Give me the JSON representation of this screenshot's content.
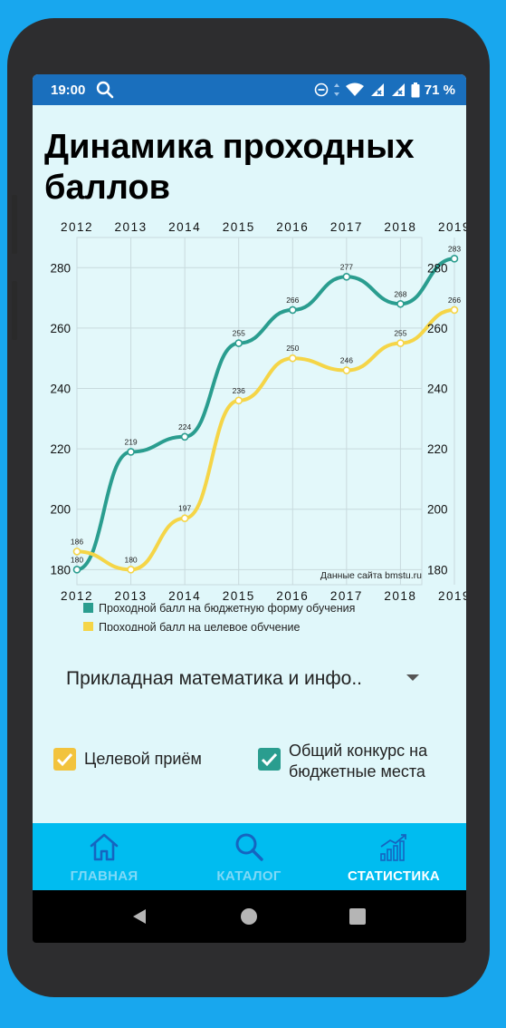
{
  "status_bar": {
    "time": "19:00",
    "battery": "71 %"
  },
  "page": {
    "title": "Динамика проходных баллов"
  },
  "chart_data": {
    "type": "line",
    "categories": [
      "2012",
      "2013",
      "2014",
      "2015",
      "2016",
      "2017",
      "2018",
      "2019"
    ],
    "ylim": [
      175,
      290
    ],
    "yticks": [
      180,
      200,
      220,
      240,
      260,
      280
    ],
    "grid": true,
    "series": [
      {
        "name": "Проходной балл на бюджетную форму обучения",
        "color": "#2a9d8f",
        "values": [
          180,
          219,
          224,
          255,
          266,
          277,
          268,
          283
        ]
      },
      {
        "name": "Проходной балл на целевое обучение",
        "color": "#f5d547",
        "values": [
          186,
          180,
          197,
          236,
          250,
          246,
          255,
          266
        ]
      }
    ],
    "source_note": "Данные сайта bmstu.ru",
    "legend_position": "bottom-left"
  },
  "program_select": {
    "value": "Прикладная математика и инфо.."
  },
  "filters": {
    "target": {
      "label": "Целевой приём",
      "checked": true,
      "color": "#f2c33d"
    },
    "general": {
      "label_line1": "Общий конкурс на",
      "label_line2": "бюджетные места",
      "checked": true,
      "color": "#2a9d8f"
    }
  },
  "bottom_nav": {
    "items": [
      {
        "label": "ГЛАВНАЯ",
        "icon": "home-icon",
        "active": false
      },
      {
        "label": "КАТАЛОГ",
        "icon": "search-icon",
        "active": false
      },
      {
        "label": "СТАТИСТИКА",
        "icon": "statistics-icon",
        "active": true
      }
    ],
    "active_color": "#ffffff",
    "inactive_color": "#7fd9f7"
  }
}
